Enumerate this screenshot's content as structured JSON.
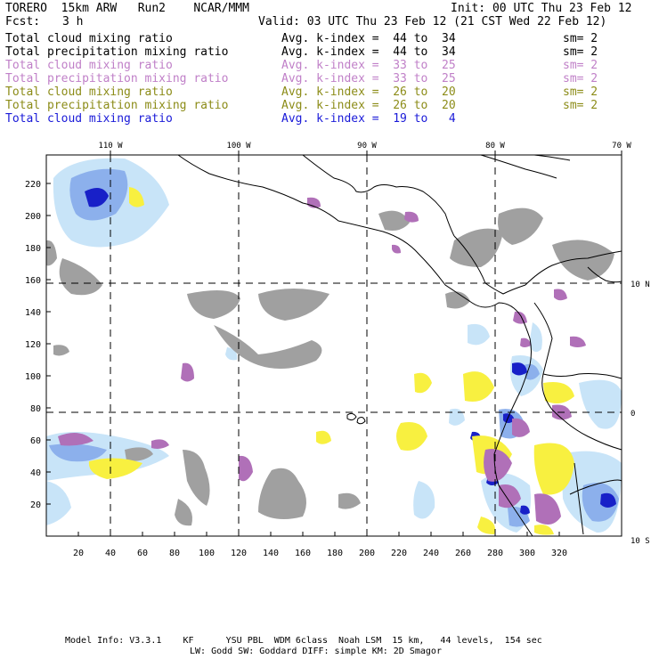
{
  "header": {
    "model": "TORERO  15km ARW   Run2    NCAR/MMM",
    "init": "Init: 00 UTC Thu 23 Feb 12",
    "fcst_label": "Fcst:",
    "fcst_value": "3 h",
    "valid": "Valid: 03 UTC Thu 23 Feb 12 (21 CST Wed 22 Feb 12)"
  },
  "legend": [
    {
      "field": "Total cloud mixing ratio",
      "avg": "Avg. k-index =  44 to  34",
      "sm": "sm= 2",
      "color": "#000000"
    },
    {
      "field": "Total precipitation mixing ratio",
      "avg": "Avg. k-index =  44 to  34",
      "sm": "sm= 2",
      "color": "#000000"
    },
    {
      "field": "Total cloud mixing ratio",
      "avg": "Avg. k-index =  33 to  25",
      "sm": "sm= 2",
      "color": "#c080c8"
    },
    {
      "field": "Total precipitation mixing ratio",
      "avg": "Avg. k-index =  33 to  25",
      "sm": "sm= 2",
      "color": "#c080c8"
    },
    {
      "field": "Total cloud mixing ratio",
      "avg": "Avg. k-index =  26 to  20",
      "sm": "sm= 2",
      "color": "#8c8c18"
    },
    {
      "field": "Total precipitation mixing ratio",
      "avg": "Avg. k-index =  26 to  20",
      "sm": "sm= 2",
      "color": "#8c8c18"
    },
    {
      "field": "Total cloud mixing ratio",
      "avg": "Avg. k-index =  19 to   4",
      "sm": "",
      "color": "#1a1ad8"
    }
  ],
  "map": {
    "lon_labels": [
      "110 W",
      "100 W",
      "90 W",
      "80 W",
      "70 W"
    ],
    "lat_labels": [
      "10 N",
      "0",
      "10 S"
    ],
    "x_ticks": [
      "20",
      "40",
      "60",
      "80",
      "100",
      "120",
      "140",
      "160",
      "180",
      "200",
      "220",
      "240",
      "260",
      "280",
      "300",
      "320"
    ],
    "y_ticks": [
      "20",
      "40",
      "60",
      "80",
      "100",
      "120",
      "140",
      "160",
      "180",
      "200",
      "220"
    ],
    "colors": {
      "gray": "#a0a0a0",
      "purple": "#b070b8",
      "yellow": "#f8f040",
      "light_blue": "#c8e4f8",
      "mid_blue": "#8cb0ec",
      "dark_blue": "#1820c8",
      "coast": "#000000"
    }
  },
  "footer": {
    "line1": "Model Info: V3.3.1    KF      YSU PBL  WDM 6class  Noah LSM  15 km,   44 levels,  154 sec",
    "line2": "LW: Godd SW: Goddard DIFF: simple KM: 2D Smagor"
  }
}
